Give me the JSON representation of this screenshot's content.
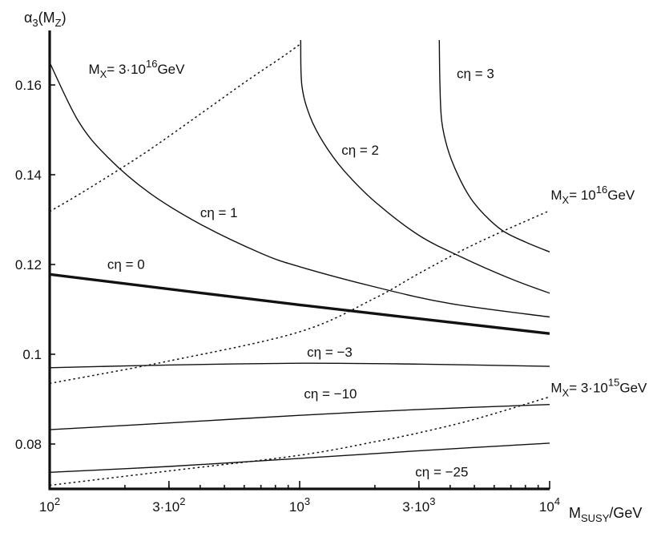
{
  "chart_data": {
    "type": "line",
    "title": "",
    "xscale": "log",
    "xlim": [
      100,
      10000
    ],
    "ylim": [
      0.07,
      0.17
    ],
    "ylabel": "α3(MZ)",
    "xlabel": "MSUSY/GeV",
    "xticks": [
      {
        "value": 100,
        "base": "10",
        "exp": "2"
      },
      {
        "value": 300,
        "base": "3·10",
        "exp": "2"
      },
      {
        "value": 1000,
        "base": "10",
        "exp": "3"
      },
      {
        "value": 3000,
        "base": "3·10",
        "exp": "3"
      },
      {
        "value": 10000,
        "base": "10",
        "exp": "4"
      }
    ],
    "yticks": [
      "0.08",
      "0.1",
      "0.12",
      "0.14",
      "0.16"
    ],
    "series": [
      {
        "name": "cη = 3",
        "style": "solid",
        "label_parts": [
          "cη = 3"
        ],
        "label_at": [
          4250,
          0.1615
        ],
        "points": [
          [
            3620,
            0.17
          ],
          [
            3640,
            0.16
          ],
          [
            3700,
            0.152
          ],
          [
            3900,
            0.146
          ],
          [
            4250,
            0.1405
          ],
          [
            4800,
            0.135
          ],
          [
            5500,
            0.131
          ],
          [
            6500,
            0.1275
          ],
          [
            8000,
            0.125
          ],
          [
            10000,
            0.1228
          ]
        ]
      },
      {
        "name": "cη = 2",
        "style": "solid",
        "label_parts": [
          "cη = 2"
        ],
        "label_at": [
          1470,
          0.1445
        ],
        "points": [
          [
            1010,
            0.17
          ],
          [
            1020,
            0.16
          ],
          [
            1100,
            0.153
          ],
          [
            1250,
            0.147
          ],
          [
            1500,
            0.141
          ],
          [
            2000,
            0.134
          ],
          [
            3000,
            0.1265
          ],
          [
            4500,
            0.1215
          ],
          [
            7000,
            0.1168
          ],
          [
            10000,
            0.1136
          ]
        ]
      },
      {
        "name": "cη = 1",
        "style": "solid",
        "label_parts": [
          "cη = 1"
        ],
        "label_at": [
          400,
          0.1305
        ],
        "points": [
          [
            100,
            0.165
          ],
          [
            130,
            0.152
          ],
          [
            170,
            0.144
          ],
          [
            250,
            0.136
          ],
          [
            400,
            0.129
          ],
          [
            700,
            0.1225
          ],
          [
            1000,
            0.1195
          ],
          [
            2000,
            0.115
          ],
          [
            4000,
            0.1113
          ],
          [
            10000,
            0.1083
          ]
        ]
      },
      {
        "name": "cη = 0",
        "style": "bold",
        "label_parts": [
          "cη = 0"
        ],
        "label_at": [
          170,
          0.119
        ],
        "points": [
          [
            100,
            0.1178
          ],
          [
            1000,
            0.111
          ],
          [
            10000,
            0.1046
          ]
        ]
      },
      {
        "name": "cη = −3",
        "style": "solid",
        "label_parts": [
          "cη = −3"
        ],
        "label_at": [
          1070,
          0.0995
        ],
        "points": [
          [
            100,
            0.097
          ],
          [
            300,
            0.0976
          ],
          [
            1000,
            0.098
          ],
          [
            3000,
            0.0978
          ],
          [
            10000,
            0.0973
          ]
        ]
      },
      {
        "name": "cη = −10",
        "style": "solid",
        "label_parts": [
          "cη = −10"
        ],
        "label_at": [
          1040,
          0.0902
        ],
        "points": [
          [
            100,
            0.0832
          ],
          [
            300,
            0.0847
          ],
          [
            1000,
            0.0864
          ],
          [
            3000,
            0.0877
          ],
          [
            10000,
            0.0888
          ]
        ]
      },
      {
        "name": "cη = −25",
        "style": "solid",
        "label_parts": [
          "cη = −25"
        ],
        "label_at": [
          2900,
          0.0728
        ],
        "points": [
          [
            100,
            0.0737
          ],
          [
            300,
            0.075
          ],
          [
            1000,
            0.0768
          ],
          [
            3000,
            0.0785
          ],
          [
            10000,
            0.0802
          ]
        ]
      },
      {
        "name": "MX= 3·1016GeV",
        "style": "dotted",
        "label_parts": [
          "M",
          "X",
          "= 3·10",
          "16",
          "GeV"
        ],
        "label_at": [
          143,
          0.1625
        ],
        "points": [
          [
            100,
            0.1318
          ],
          [
            130,
            0.1355
          ],
          [
            170,
            0.1395
          ],
          [
            250,
            0.1455
          ],
          [
            400,
            0.1535
          ],
          [
            600,
            0.1605
          ],
          [
            850,
            0.1662
          ],
          [
            1000,
            0.169
          ]
        ]
      },
      {
        "name": "MX= 1016GeV",
        "style": "dotted",
        "label_parts": [
          "M",
          "X",
          "= 10",
          "16",
          "GeV"
        ],
        "label_at": [
          10100,
          0.1345
        ],
        "points": [
          [
            100,
            0.0935
          ],
          [
            300,
            0.0985
          ],
          [
            1000,
            0.105
          ],
          [
            2000,
            0.1125
          ],
          [
            3000,
            0.118
          ],
          [
            5000,
            0.1245
          ],
          [
            10000,
            0.132
          ]
        ]
      },
      {
        "name": "MX= 3·1015GeV",
        "style": "dotted",
        "label_parts": [
          "M",
          "X",
          "= 3·10",
          "15",
          "GeV"
        ],
        "label_at": [
          10100,
          0.0915
        ],
        "points": [
          [
            100,
            0.0708
          ],
          [
            300,
            0.074
          ],
          [
            1000,
            0.0775
          ],
          [
            2000,
            0.0805
          ],
          [
            3000,
            0.0825
          ],
          [
            5000,
            0.0855
          ],
          [
            10000,
            0.0905
          ]
        ]
      }
    ]
  }
}
